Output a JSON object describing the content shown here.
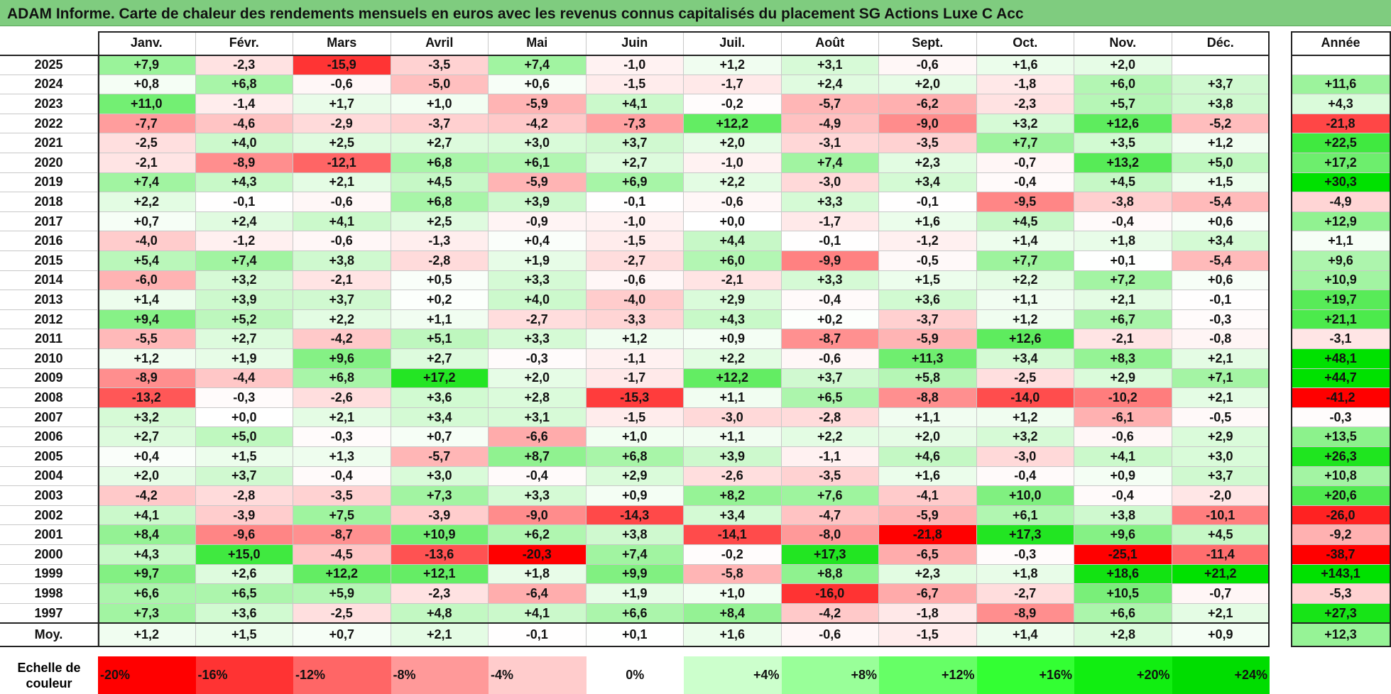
{
  "title": "ADAM Informe. Carte de chaleur des rendements mensuels en euros avec les revenus connus capitalisés du placement SG Actions Luxe C Acc",
  "chart_data": {
    "type": "heatmap",
    "title": "ADAM Informe. Carte de chaleur des rendements mensuels en euros avec les revenus connus capitalisés du placement SG Actions Luxe C Acc",
    "columns": [
      "Janv.",
      "Févr.",
      "Mars",
      "Avril",
      "Mai",
      "Juin",
      "Juil.",
      "Août",
      "Sept.",
      "Oct.",
      "Nov.",
      "Déc."
    ],
    "year_column": "Année",
    "rows": [
      {
        "year": "2025",
        "values": [
          "+7,9",
          "-2,3",
          "-15,9",
          "-3,5",
          "+7,4",
          "-1,0",
          "+1,2",
          "+3,1",
          "-0,6",
          "+1,6",
          "+2,0",
          ""
        ],
        "annual": ""
      },
      {
        "year": "2024",
        "values": [
          "+0,8",
          "+6,8",
          "-0,6",
          "-5,0",
          "+0,6",
          "-1,5",
          "-1,7",
          "+2,4",
          "+2,0",
          "-1,8",
          "+6,0",
          "+3,7"
        ],
        "annual": "+11,6"
      },
      {
        "year": "2023",
        "values": [
          "+11,0",
          "-1,4",
          "+1,7",
          "+1,0",
          "-5,9",
          "+4,1",
          "-0,2",
          "-5,7",
          "-6,2",
          "-2,3",
          "+5,7",
          "+3,8"
        ],
        "annual": "+4,3"
      },
      {
        "year": "2022",
        "values": [
          "-7,7",
          "-4,6",
          "-2,9",
          "-3,7",
          "-4,2",
          "-7,3",
          "+12,2",
          "-4,9",
          "-9,0",
          "+3,2",
          "+12,6",
          "-5,2"
        ],
        "annual": "-21,8"
      },
      {
        "year": "2021",
        "values": [
          "-2,5",
          "+4,0",
          "+2,5",
          "+2,7",
          "+3,0",
          "+3,7",
          "+2,0",
          "-3,1",
          "-3,5",
          "+7,7",
          "+3,5",
          "+1,2"
        ],
        "annual": "+22,5"
      },
      {
        "year": "2020",
        "values": [
          "-2,1",
          "-8,9",
          "-12,1",
          "+6,8",
          "+6,1",
          "+2,7",
          "-1,0",
          "+7,4",
          "+2,3",
          "-0,7",
          "+13,2",
          "+5,0"
        ],
        "annual": "+17,2"
      },
      {
        "year": "2019",
        "values": [
          "+7,4",
          "+4,3",
          "+2,1",
          "+4,5",
          "-5,9",
          "+6,9",
          "+2,2",
          "-3,0",
          "+3,4",
          "-0,4",
          "+4,5",
          "+1,5"
        ],
        "annual": "+30,3"
      },
      {
        "year": "2018",
        "values": [
          "+2,2",
          "-0,1",
          "-0,6",
          "+6,8",
          "+3,9",
          "-0,1",
          "-0,6",
          "+3,3",
          "-0,1",
          "-9,5",
          "-3,8",
          "-5,4"
        ],
        "annual": "-4,9"
      },
      {
        "year": "2017",
        "values": [
          "+0,7",
          "+2,4",
          "+4,1",
          "+2,5",
          "-0,9",
          "-1,0",
          "+0,0",
          "-1,7",
          "+1,6",
          "+4,5",
          "-0,4",
          "+0,6"
        ],
        "annual": "+12,9"
      },
      {
        "year": "2016",
        "values": [
          "-4,0",
          "-1,2",
          "-0,6",
          "-1,3",
          "+0,4",
          "-1,5",
          "+4,4",
          "-0,1",
          "-1,2",
          "+1,4",
          "+1,8",
          "+3,4"
        ],
        "annual": "+1,1"
      },
      {
        "year": "2015",
        "values": [
          "+5,4",
          "+7,4",
          "+3,8",
          "-2,8",
          "+1,9",
          "-2,7",
          "+6,0",
          "-9,9",
          "-0,5",
          "+7,7",
          "+0,1",
          "-5,4"
        ],
        "annual": "+9,6"
      },
      {
        "year": "2014",
        "values": [
          "-6,0",
          "+3,2",
          "-2,1",
          "+0,5",
          "+3,3",
          "-0,6",
          "-2,1",
          "+3,3",
          "+1,5",
          "+2,2",
          "+7,2",
          "+0,6"
        ],
        "annual": "+10,9"
      },
      {
        "year": "2013",
        "values": [
          "+1,4",
          "+3,9",
          "+3,7",
          "+0,2",
          "+4,0",
          "-4,0",
          "+2,9",
          "-0,4",
          "+3,6",
          "+1,1",
          "+2,1",
          "-0,1"
        ],
        "annual": "+19,7"
      },
      {
        "year": "2012",
        "values": [
          "+9,4",
          "+5,2",
          "+2,2",
          "+1,1",
          "-2,7",
          "-3,3",
          "+4,3",
          "+0,2",
          "-3,7",
          "+1,2",
          "+6,7",
          "-0,3"
        ],
        "annual": "+21,1"
      },
      {
        "year": "2011",
        "values": [
          "-5,5",
          "+2,7",
          "-4,2",
          "+5,1",
          "+3,3",
          "+1,2",
          "+0,9",
          "-8,7",
          "-5,9",
          "+12,6",
          "-2,1",
          "-0,8"
        ],
        "annual": "-3,1"
      },
      {
        "year": "2010",
        "values": [
          "+1,2",
          "+1,9",
          "+9,6",
          "+2,7",
          "-0,3",
          "-1,1",
          "+2,2",
          "-0,6",
          "+11,3",
          "+3,4",
          "+8,3",
          "+2,1"
        ],
        "annual": "+48,1"
      },
      {
        "year": "2009",
        "values": [
          "-8,9",
          "-4,4",
          "+6,8",
          "+17,2",
          "+2,0",
          "-1,7",
          "+12,2",
          "+3,7",
          "+5,8",
          "-2,5",
          "+2,9",
          "+7,1"
        ],
        "annual": "+44,7"
      },
      {
        "year": "2008",
        "values": [
          "-13,2",
          "-0,3",
          "-2,6",
          "+3,6",
          "+2,8",
          "-15,3",
          "+1,1",
          "+6,5",
          "-8,8",
          "-14,0",
          "-10,2",
          "+2,1"
        ],
        "annual": "-41,2"
      },
      {
        "year": "2007",
        "values": [
          "+3,2",
          "+0,0",
          "+2,1",
          "+3,4",
          "+3,1",
          "-1,5",
          "-3,0",
          "-2,8",
          "+1,1",
          "+1,2",
          "-6,1",
          "-0,5"
        ],
        "annual": "-0,3"
      },
      {
        "year": "2006",
        "values": [
          "+2,7",
          "+5,0",
          "-0,3",
          "+0,7",
          "-6,6",
          "+1,0",
          "+1,1",
          "+2,2",
          "+2,0",
          "+3,2",
          "-0,6",
          "+2,9"
        ],
        "annual": "+13,5"
      },
      {
        "year": "2005",
        "values": [
          "+0,4",
          "+1,5",
          "+1,3",
          "-5,7",
          "+8,7",
          "+6,8",
          "+3,9",
          "-1,1",
          "+4,6",
          "-3,0",
          "+4,1",
          "+3,0"
        ],
        "annual": "+26,3"
      },
      {
        "year": "2004",
        "values": [
          "+2,0",
          "+3,7",
          "-0,4",
          "+3,0",
          "-0,4",
          "+2,9",
          "-2,6",
          "-3,5",
          "+1,6",
          "-0,4",
          "+0,9",
          "+3,7"
        ],
        "annual": "+10,8"
      },
      {
        "year": "2003",
        "values": [
          "-4,2",
          "-2,8",
          "-3,5",
          "+7,3",
          "+3,3",
          "+0,9",
          "+8,2",
          "+7,6",
          "-4,1",
          "+10,0",
          "-0,4",
          "-2,0"
        ],
        "annual": "+20,6"
      },
      {
        "year": "2002",
        "values": [
          "+4,1",
          "-3,9",
          "+7,5",
          "-3,9",
          "-9,0",
          "-14,3",
          "+3,4",
          "-4,7",
          "-5,9",
          "+6,1",
          "+3,8",
          "-10,1"
        ],
        "annual": "-26,0"
      },
      {
        "year": "2001",
        "values": [
          "+8,4",
          "-9,6",
          "-8,7",
          "+10,9",
          "+6,2",
          "+3,8",
          "-14,1",
          "-8,0",
          "-21,8",
          "+17,3",
          "+9,6",
          "+4,5"
        ],
        "annual": "-9,2"
      },
      {
        "year": "2000",
        "values": [
          "+4,3",
          "+15,0",
          "-4,5",
          "-13,6",
          "-20,3",
          "+7,4",
          "-0,2",
          "+17,3",
          "-6,5",
          "-0,3",
          "-25,1",
          "-11,4"
        ],
        "annual": "-38,7"
      },
      {
        "year": "1999",
        "values": [
          "+9,7",
          "+2,6",
          "+12,2",
          "+12,1",
          "+1,8",
          "+9,9",
          "-5,8",
          "+8,8",
          "+2,3",
          "+1,8",
          "+18,6",
          "+21,2"
        ],
        "annual": "+143,1"
      },
      {
        "year": "1998",
        "values": [
          "+6,6",
          "+6,5",
          "+5,9",
          "-2,3",
          "-6,4",
          "+1,9",
          "+1,0",
          "-16,0",
          "-6,7",
          "-2,7",
          "+10,5",
          "-0,7"
        ],
        "annual": "-5,3"
      },
      {
        "year": "1997",
        "values": [
          "+7,3",
          "+3,6",
          "-2,5",
          "+4,8",
          "+4,1",
          "+6,6",
          "+8,4",
          "-4,2",
          "-1,8",
          "-8,9",
          "+6,6",
          "+2,1"
        ],
        "annual": "+27,3"
      }
    ],
    "average": {
      "label": "Moy.",
      "values": [
        "+1,2",
        "+1,5",
        "+0,7",
        "+2,1",
        "-0,1",
        "+0,1",
        "+1,6",
        "-0,6",
        "-1,5",
        "+1,4",
        "+2,8",
        "+0,9"
      ],
      "annual": "+12,3"
    },
    "color_scale": {
      "label": "Echelle de couleur",
      "stops": [
        "-20%",
        "-16%",
        "-12%",
        "-8%",
        "-4%",
        "0%",
        "+4%",
        "+8%",
        "+12%",
        "+16%",
        "+20%",
        "+24%"
      ],
      "colors": [
        "#ff0000",
        "#ff3333",
        "#ff6666",
        "#ff9999",
        "#ffcccc",
        "#ffffff",
        "#ccffcc",
        "#99ff99",
        "#66ff66",
        "#33ff33",
        "#11ee11",
        "#00dd00"
      ]
    }
  }
}
